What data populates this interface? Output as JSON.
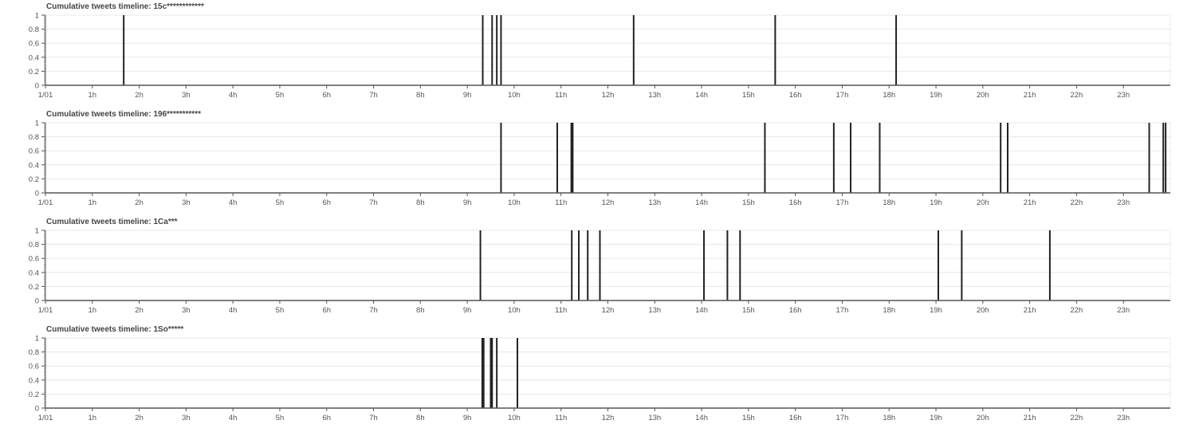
{
  "chart_data": [
    {
      "type": "bar",
      "title": "Cumulative tweets timeline: 15c************",
      "x_unit": "hours",
      "xlim": [
        0,
        24
      ],
      "ylim": [
        0,
        1
      ],
      "yticks": [
        "0",
        "0.2",
        "0.4",
        "0.6",
        "0.8",
        "1"
      ],
      "xtick_labels": [
        "1/01",
        "1h",
        "2h",
        "3h",
        "4h",
        "5h",
        "6h",
        "7h",
        "8h",
        "9h",
        "10h",
        "11h",
        "12h",
        "13h",
        "14h",
        "15h",
        "16h",
        "17h",
        "18h",
        "19h",
        "20h",
        "21h",
        "22h",
        "23h"
      ],
      "events": [
        1.67,
        9.33,
        9.53,
        9.63,
        9.72,
        12.55,
        15.57,
        18.15
      ],
      "values": [
        1,
        1,
        1,
        1,
        1,
        1,
        1,
        1
      ],
      "grid": true
    },
    {
      "type": "bar",
      "title": "Cumulative tweets timeline: 196***********",
      "x_unit": "hours",
      "xlim": [
        0,
        24
      ],
      "ylim": [
        0,
        1
      ],
      "yticks": [
        "0",
        "0.2",
        "0.4",
        "0.6",
        "0.8",
        "1"
      ],
      "xtick_labels": [
        "1/01",
        "1h",
        "2h",
        "3h",
        "4h",
        "5h",
        "6h",
        "7h",
        "8h",
        "9h",
        "10h",
        "11h",
        "12h",
        "13h",
        "14h",
        "15h",
        "16h",
        "17h",
        "18h",
        "19h",
        "20h",
        "21h",
        "22h",
        "23h"
      ],
      "events": [
        9.72,
        10.92,
        11.22,
        11.25,
        15.35,
        16.82,
        17.18,
        17.8,
        20.38,
        20.53,
        23.55,
        23.85,
        23.9
      ],
      "values": [
        1,
        1,
        1,
        1,
        1,
        1,
        1,
        1,
        1,
        1,
        1,
        1,
        1
      ],
      "grid": true
    },
    {
      "type": "bar",
      "title": "Cumulative tweets timeline: 1Ca***",
      "x_unit": "hours",
      "xlim": [
        0,
        24
      ],
      "ylim": [
        0,
        1
      ],
      "yticks": [
        "0",
        "0.2",
        "0.4",
        "0.6",
        "0.8",
        "1"
      ],
      "xtick_labels": [
        "1/01",
        "1h",
        "2h",
        "3h",
        "4h",
        "5h",
        "6h",
        "7h",
        "8h",
        "9h",
        "10h",
        "11h",
        "12h",
        "13h",
        "14h",
        "15h",
        "16h",
        "17h",
        "18h",
        "19h",
        "20h",
        "21h",
        "22h",
        "23h"
      ],
      "events": [
        9.28,
        11.23,
        11.38,
        11.57,
        11.83,
        14.05,
        14.55,
        14.82,
        19.05,
        19.55,
        21.43
      ],
      "values": [
        1,
        1,
        1,
        1,
        1,
        1,
        1,
        1,
        1,
        1,
        1
      ],
      "grid": true
    },
    {
      "type": "bar",
      "title": "Cumulative tweets timeline: 1So*****",
      "x_unit": "hours",
      "xlim": [
        0,
        24
      ],
      "ylim": [
        0,
        1
      ],
      "yticks": [
        "0",
        "0.2",
        "0.4",
        "0.6",
        "0.8",
        "1"
      ],
      "xtick_labels": [
        "1/01",
        "1h",
        "2h",
        "3h",
        "4h",
        "5h",
        "6h",
        "7h",
        "8h",
        "9h",
        "10h",
        "11h",
        "12h",
        "13h",
        "14h",
        "15h",
        "16h",
        "17h",
        "18h",
        "19h",
        "20h",
        "21h",
        "22h",
        "23h"
      ],
      "events": [
        9.32,
        9.35,
        9.5,
        9.53,
        9.63,
        10.07
      ],
      "values": [
        1,
        1,
        1,
        1,
        1,
        1
      ],
      "grid": true
    }
  ],
  "colors": {
    "bar": "#222222",
    "axis": "#555555",
    "grid": "#e8e8e8",
    "text": "#444444"
  }
}
